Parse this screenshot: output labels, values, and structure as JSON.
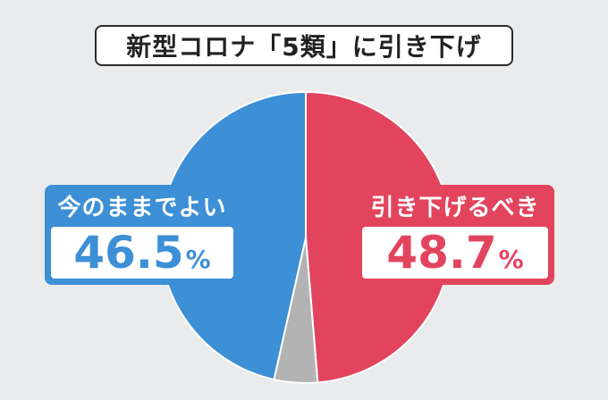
{
  "title": "新型コロナ「5類」に引き下げ",
  "chart_data": {
    "type": "pie",
    "slices": [
      {
        "label": "引き下げるべき",
        "value": 48.7,
        "display": "48.7",
        "color": "#e2445e"
      },
      {
        "label": "",
        "value": 4.8,
        "color": "#b3b3b3"
      },
      {
        "label": "今のままでよい",
        "value": 46.5,
        "display": "46.5",
        "color": "#3d8fd6"
      }
    ],
    "unit": "%"
  }
}
